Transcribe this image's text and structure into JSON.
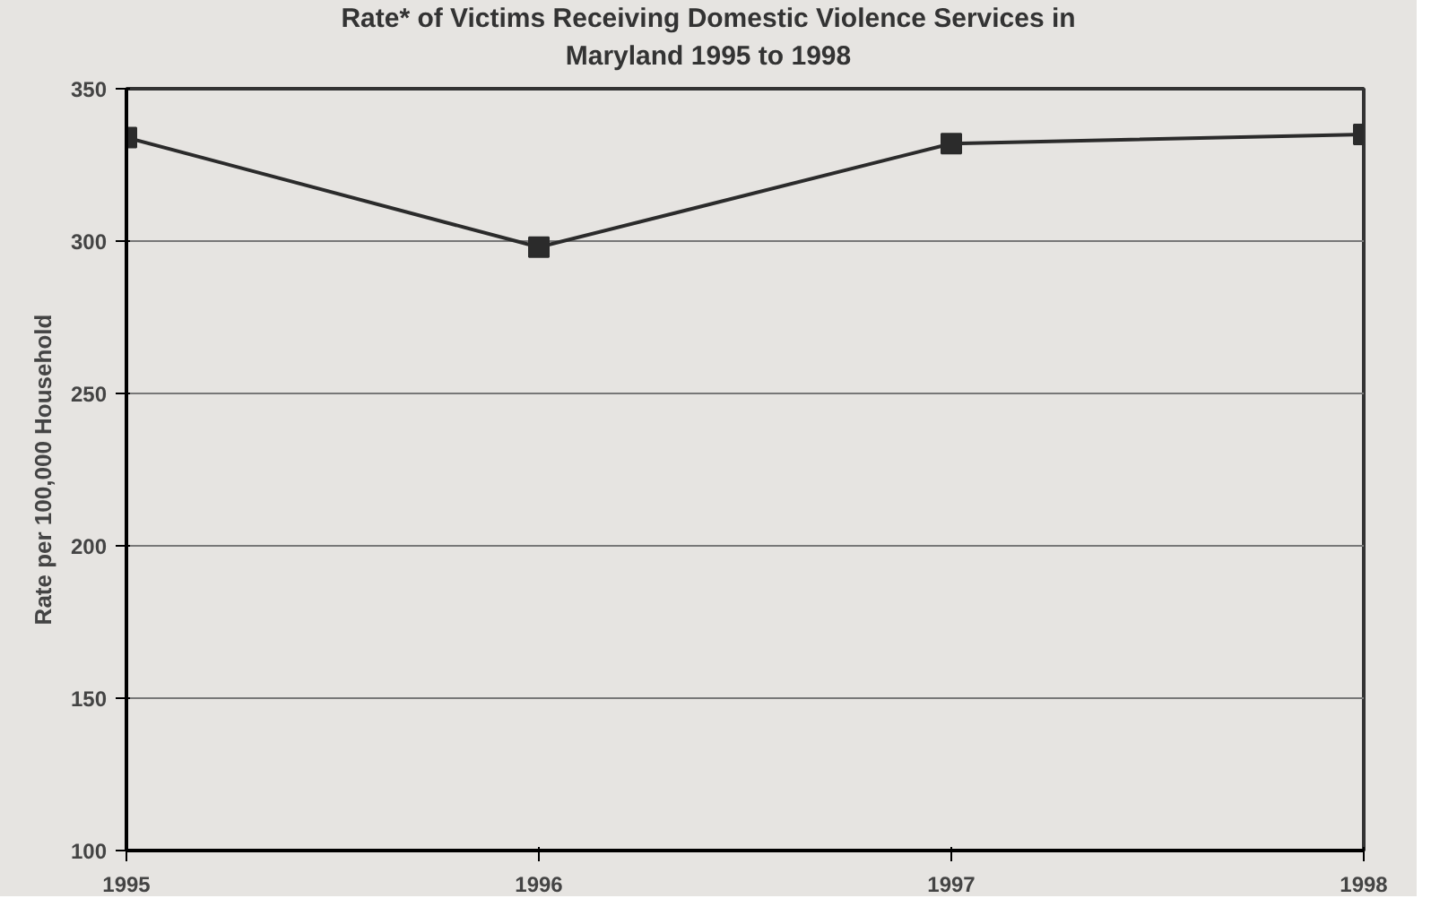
{
  "chart_data": {
    "type": "line",
    "title": "Rate* of Victims Receiving Domestic Violence Services in\nMaryland 1995 to 1998",
    "ylabel": "Rate per 100,000 Household",
    "x": [
      1995,
      1996,
      1997,
      1998
    ],
    "series": [
      {
        "color": "#2b2b2b",
        "values": [
          334,
          298,
          332,
          335
        ]
      }
    ],
    "xlim": [
      1995,
      1998
    ],
    "xticks": [
      1995,
      1996,
      1997,
      1998
    ],
    "ylim": [
      100,
      350
    ],
    "yticks": [
      100,
      150,
      200,
      250,
      300,
      350
    ],
    "grid": "y",
    "marker": "square",
    "line_style": "solid"
  }
}
